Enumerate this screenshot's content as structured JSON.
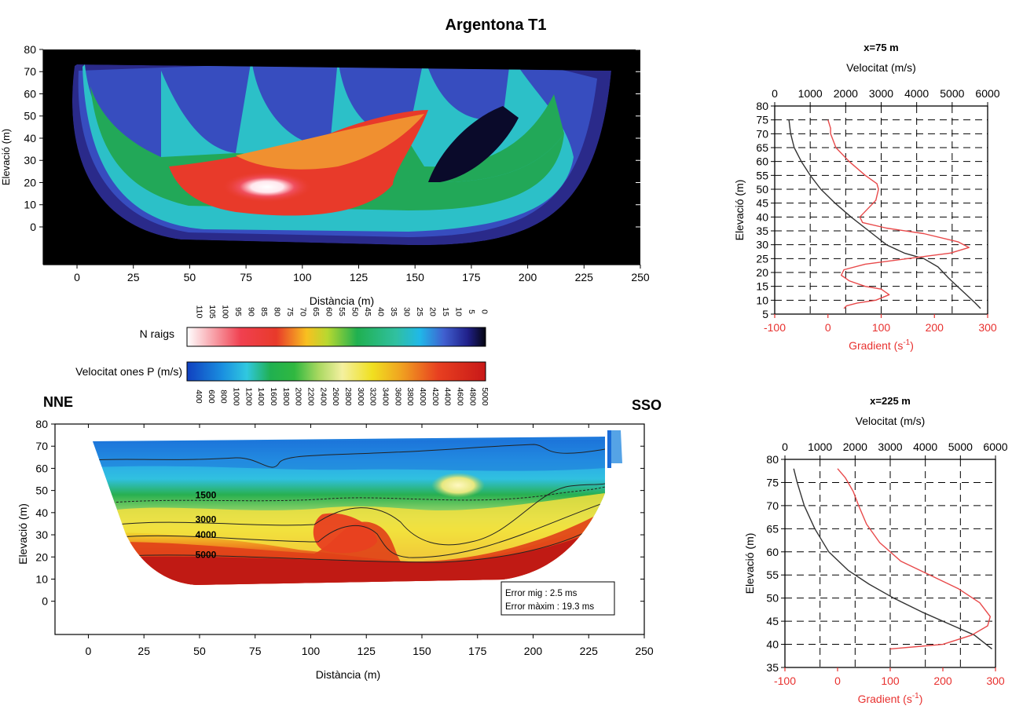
{
  "title": "Argentona T1",
  "colors": {
    "velocity_curve": "#333333",
    "gradient_curve": "#e8494a",
    "gradient_axis": "#e8312f"
  },
  "ray_colorbar": {
    "label": "N raigs",
    "ticks": [
      "110",
      "105",
      "100",
      "95",
      "90",
      "85",
      "80",
      "75",
      "70",
      "65",
      "60",
      "55",
      "50",
      "45",
      "40",
      "35",
      "30",
      "25",
      "20",
      "15",
      "10",
      "5",
      "0"
    ]
  },
  "velocity_colorbar": {
    "label": "Velocitat ones P (m/s)",
    "ticks": [
      "400",
      "600",
      "800",
      "1000",
      "1200",
      "1400",
      "1600",
      "1800",
      "2000",
      "2200",
      "2400",
      "2600",
      "2800",
      "3000",
      "3200",
      "3400",
      "3600",
      "3800",
      "4000",
      "4200",
      "4400",
      "4600",
      "4800",
      "5000"
    ]
  },
  "chart_data": [
    {
      "id": "ray-coverage",
      "type": "heatmap",
      "title": "Argentona T1",
      "xlabel": "Distància (m)",
      "ylabel": "Elevació (m)",
      "xlim": [
        -15,
        250
      ],
      "ylim": [
        -17,
        80
      ],
      "xticks": [
        0,
        25,
        50,
        75,
        100,
        125,
        150,
        175,
        200,
        225,
        250
      ],
      "yticks": [
        0,
        10,
        20,
        30,
        40,
        50,
        60,
        70,
        80
      ],
      "colorbar": "N raigs"
    },
    {
      "id": "velocity-tomogram",
      "type": "heatmap",
      "left_label": "NNE",
      "right_label": "SSO",
      "xlabel": "Distància (m)",
      "ylabel": "Elevació (m)",
      "xlim": [
        -15,
        250
      ],
      "ylim": [
        -15,
        80
      ],
      "xticks": [
        0,
        25,
        50,
        75,
        100,
        125,
        150,
        175,
        200,
        225,
        250
      ],
      "yticks": [
        0,
        10,
        20,
        30,
        40,
        50,
        60,
        70,
        80
      ],
      "colorbar": "Velocitat ones P (m/s)",
      "contour_labels": [
        {
          "text": "1500",
          "x": 50,
          "y": 48
        },
        {
          "text": "3000",
          "x": 50,
          "y": 37
        },
        {
          "text": "4000",
          "x": 50,
          "y": 30
        },
        {
          "text": "5000",
          "x": 50,
          "y": 21
        }
      ],
      "error_lines": [
        "Error mig : 2.5 ms",
        "Error màxim : 19.3 ms"
      ]
    },
    {
      "id": "profile-75",
      "type": "line",
      "title": "x=75 m",
      "top_xlabel": "Velocitat (m/s)",
      "bottom_xlabel": "Gradient (s",
      "bottom_xlabel_sup": "-1",
      "bottom_xlabel_end": ")",
      "ylabel": "Elevació (m)",
      "top_xlim": [
        0,
        6000
      ],
      "top_xticks": [
        0,
        1000,
        2000,
        3000,
        4000,
        5000,
        6000
      ],
      "bottom_xlim": [
        -100,
        300
      ],
      "bottom_xticks": [
        -100,
        0,
        100,
        200,
        300
      ],
      "ylim": [
        5,
        80
      ],
      "yticks": [
        5,
        10,
        15,
        20,
        25,
        30,
        35,
        40,
        45,
        50,
        55,
        60,
        65,
        70,
        75,
        80
      ],
      "series": [
        {
          "axis": "top",
          "points": [
            [
              400,
              75
            ],
            [
              450,
              70
            ],
            [
              550,
              65
            ],
            [
              750,
              60
            ],
            [
              1000,
              55
            ],
            [
              1300,
              50
            ],
            [
              1700,
              45
            ],
            [
              2150,
              40
            ],
            [
              2650,
              35
            ],
            [
              3150,
              30
            ],
            [
              3650,
              27
            ],
            [
              4200,
              25
            ],
            [
              4600,
              22
            ],
            [
              4900,
              18
            ],
            [
              5150,
              15
            ],
            [
              5400,
              12
            ],
            [
              5650,
              9
            ],
            [
              5800,
              7
            ]
          ]
        },
        {
          "axis": "bottom",
          "points": [
            [
              0,
              75
            ],
            [
              5,
              72
            ],
            [
              5,
              70
            ],
            [
              15,
              65
            ],
            [
              40,
              60
            ],
            [
              70,
              55
            ],
            [
              92,
              52
            ],
            [
              95,
              50
            ],
            [
              90,
              46
            ],
            [
              75,
              43
            ],
            [
              60,
              40
            ],
            [
              65,
              38
            ],
            [
              110,
              36
            ],
            [
              180,
              34
            ],
            [
              245,
              31
            ],
            [
              265,
              29
            ],
            [
              230,
              27
            ],
            [
              150,
              25
            ],
            [
              70,
              23
            ],
            [
              30,
              21
            ],
            [
              25,
              19
            ],
            [
              40,
              17
            ],
            [
              70,
              15
            ],
            [
              100,
              14
            ],
            [
              115,
              12
            ],
            [
              90,
              10
            ],
            [
              55,
              9
            ],
            [
              35,
              8
            ],
            [
              30,
              7
            ]
          ]
        }
      ]
    },
    {
      "id": "profile-225",
      "type": "line",
      "title": "x=225 m",
      "top_xlabel": "Velocitat (m/s)",
      "bottom_xlabel": "Gradient (s",
      "bottom_xlabel_sup": "-1",
      "bottom_xlabel_end": ")",
      "ylabel": "Elevació (m)",
      "top_xlim": [
        0,
        6000
      ],
      "top_xticks": [
        0,
        1000,
        2000,
        3000,
        4000,
        5000,
        6000
      ],
      "bottom_xlim": [
        -100,
        300
      ],
      "bottom_xticks": [
        -100,
        0,
        100,
        200,
        300
      ],
      "ylim": [
        35,
        80
      ],
      "yticks": [
        35,
        40,
        45,
        50,
        55,
        60,
        65,
        70,
        75,
        80
      ],
      "series": [
        {
          "axis": "top",
          "points": [
            [
              250,
              78
            ],
            [
              350,
              75
            ],
            [
              550,
              70
            ],
            [
              850,
              65
            ],
            [
              1250,
              60
            ],
            [
              1800,
              56
            ],
            [
              2400,
              53
            ],
            [
              3100,
              50
            ],
            [
              3900,
              47
            ],
            [
              4800,
              44
            ],
            [
              5400,
              42
            ],
            [
              5900,
              39
            ]
          ]
        },
        {
          "axis": "bottom",
          "points": [
            [
              0,
              78
            ],
            [
              15,
              76
            ],
            [
              30,
              73
            ],
            [
              40,
              70
            ],
            [
              55,
              66
            ],
            [
              80,
              62
            ],
            [
              120,
              58
            ],
            [
              175,
              55
            ],
            [
              230,
              52
            ],
            [
              270,
              49
            ],
            [
              290,
              46
            ],
            [
              285,
              44
            ],
            [
              255,
              42
            ],
            [
              200,
              40
            ],
            [
              150,
              39.5
            ],
            [
              100,
              39
            ]
          ]
        }
      ]
    }
  ]
}
